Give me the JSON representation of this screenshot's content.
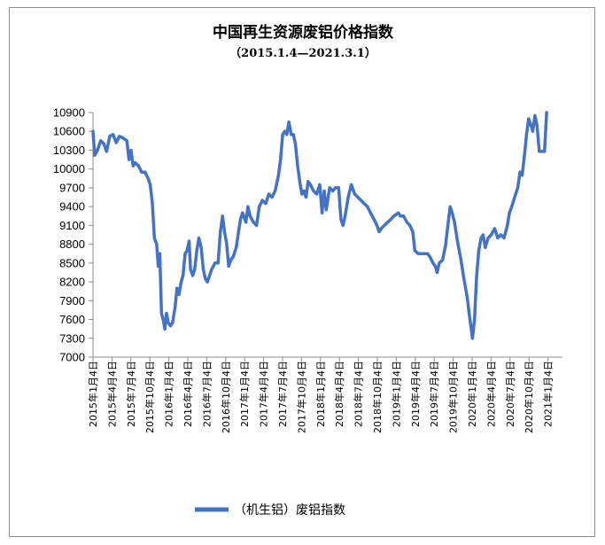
{
  "chart_data": {
    "type": "line",
    "title": "中国再生资源废铝价格指数",
    "subtitle": "（2015.1.4—2021.3.1）",
    "ylim": [
      7000,
      10900
    ],
    "yticks": [
      7000,
      7300,
      7600,
      7900,
      8200,
      8500,
      8800,
      9100,
      9400,
      9700,
      10000,
      10300,
      10600,
      10900
    ],
    "xticks": [
      "2015年1月4日",
      "2015年4月4日",
      "2015年7月4日",
      "2015年10月4日",
      "2016年1月4日",
      "2016年4月4日",
      "2016年7月4日",
      "2016年10月4日",
      "2017年1月4日",
      "2017年4月4日",
      "2017年7月4日",
      "2017年10月4日",
      "2018年1月4日",
      "2018年4月4日",
      "2018年7月4日",
      "2018年10月4日",
      "2019年1月4日",
      "2019年4月4日",
      "2019年7月4日",
      "2019年10月4日",
      "2020年1月4日",
      "2020年4月4日",
      "2020年7月4日",
      "2020年10月4日",
      "2021年1月4日"
    ],
    "grid": false,
    "legend_position": "bottom",
    "series": [
      {
        "name": "（机生铝）废铝指数",
        "color": "#4472c4",
        "x_start": "2015-01-04",
        "x_end": "2021-03-01",
        "values": [
          [
            "2015-01-04",
            10600
          ],
          [
            "2015-01-12",
            10220
          ],
          [
            "2015-01-25",
            10300
          ],
          [
            "2015-02-10",
            10450
          ],
          [
            "2015-02-25",
            10400
          ],
          [
            "2015-03-10",
            10280
          ],
          [
            "2015-03-25",
            10520
          ],
          [
            "2015-04-10",
            10550
          ],
          [
            "2015-04-25",
            10420
          ],
          [
            "2015-05-10",
            10520
          ],
          [
            "2015-05-25",
            10500
          ],
          [
            "2015-06-15",
            10450
          ],
          [
            "2015-06-25",
            10150
          ],
          [
            "2015-07-05",
            10300
          ],
          [
            "2015-07-15",
            10050
          ],
          [
            "2015-07-25",
            10100
          ],
          [
            "2015-08-10",
            10050
          ],
          [
            "2015-08-25",
            9950
          ],
          [
            "2015-09-10",
            9950
          ],
          [
            "2015-09-25",
            9850
          ],
          [
            "2015-10-05",
            9750
          ],
          [
            "2015-10-15",
            9450
          ],
          [
            "2015-10-25",
            8900
          ],
          [
            "2015-11-05",
            8800
          ],
          [
            "2015-11-12",
            8450
          ],
          [
            "2015-11-20",
            8650
          ],
          [
            "2015-11-28",
            7700
          ],
          [
            "2015-12-06",
            7600
          ],
          [
            "2015-12-14",
            7450
          ],
          [
            "2015-12-22",
            7700
          ],
          [
            "2015-12-30",
            7550
          ],
          [
            "2016-01-10",
            7500
          ],
          [
            "2016-01-20",
            7550
          ],
          [
            "2016-02-01",
            7800
          ],
          [
            "2016-02-10",
            8100
          ],
          [
            "2016-02-20",
            8000
          ],
          [
            "2016-03-01",
            8200
          ],
          [
            "2016-03-10",
            8300
          ],
          [
            "2016-03-20",
            8650
          ],
          [
            "2016-03-30",
            8700
          ],
          [
            "2016-04-08",
            8850
          ],
          [
            "2016-04-15",
            8400
          ],
          [
            "2016-04-25",
            8300
          ],
          [
            "2016-05-05",
            8400
          ],
          [
            "2016-05-15",
            8700
          ],
          [
            "2016-05-25",
            8900
          ],
          [
            "2016-06-05",
            8750
          ],
          [
            "2016-06-15",
            8400
          ],
          [
            "2016-06-25",
            8250
          ],
          [
            "2016-07-05",
            8200
          ],
          [
            "2016-07-15",
            8300
          ],
          [
            "2016-07-25",
            8400
          ],
          [
            "2016-08-10",
            8500
          ],
          [
            "2016-08-25",
            8500
          ],
          [
            "2016-09-05",
            9000
          ],
          [
            "2016-09-15",
            9250
          ],
          [
            "2016-09-25",
            9000
          ],
          [
            "2016-10-05",
            8800
          ],
          [
            "2016-10-15",
            8450
          ],
          [
            "2016-10-25",
            8550
          ],
          [
            "2016-11-05",
            8600
          ],
          [
            "2016-11-20",
            8750
          ],
          [
            "2016-12-01",
            9000
          ],
          [
            "2016-12-10",
            9200
          ],
          [
            "2016-12-20",
            9300
          ],
          [
            "2017-01-05",
            9150
          ],
          [
            "2017-01-15",
            9400
          ],
          [
            "2017-01-25",
            9250
          ],
          [
            "2017-02-10",
            9150
          ],
          [
            "2017-02-25",
            9100
          ],
          [
            "2017-03-10",
            9400
          ],
          [
            "2017-03-25",
            9500
          ],
          [
            "2017-04-10",
            9450
          ],
          [
            "2017-04-25",
            9600
          ],
          [
            "2017-05-10",
            9550
          ],
          [
            "2017-05-25",
            9650
          ],
          [
            "2017-06-10",
            9900
          ],
          [
            "2017-06-20",
            10150
          ],
          [
            "2017-06-30",
            10550
          ],
          [
            "2017-07-10",
            10600
          ],
          [
            "2017-07-20",
            10550
          ],
          [
            "2017-07-30",
            10750
          ],
          [
            "2017-08-10",
            10550
          ],
          [
            "2017-08-20",
            10550
          ],
          [
            "2017-08-30",
            10400
          ],
          [
            "2017-09-10",
            10050
          ],
          [
            "2017-09-20",
            9800
          ],
          [
            "2017-09-30",
            9600
          ],
          [
            "2017-10-10",
            9650
          ],
          [
            "2017-10-20",
            9550
          ],
          [
            "2017-10-30",
            9800
          ],
          [
            "2017-11-10",
            9750
          ],
          [
            "2017-11-25",
            9650
          ],
          [
            "2017-12-10",
            9600
          ],
          [
            "2017-12-25",
            9750
          ],
          [
            "2018-01-05",
            9300
          ],
          [
            "2018-01-15",
            9650
          ],
          [
            "2018-01-25",
            9350
          ],
          [
            "2018-02-10",
            9700
          ],
          [
            "2018-02-25",
            9650
          ],
          [
            "2018-03-10",
            9700
          ],
          [
            "2018-03-25",
            9700
          ],
          [
            "2018-04-05",
            9200
          ],
          [
            "2018-04-15",
            9100
          ],
          [
            "2018-04-25",
            9250
          ],
          [
            "2018-05-10",
            9550
          ],
          [
            "2018-05-25",
            9750
          ],
          [
            "2018-06-10",
            9600
          ],
          [
            "2018-06-25",
            9550
          ],
          [
            "2018-07-10",
            9500
          ],
          [
            "2018-07-25",
            9450
          ],
          [
            "2018-08-10",
            9400
          ],
          [
            "2018-08-25",
            9300
          ],
          [
            "2018-09-10",
            9200
          ],
          [
            "2018-09-25",
            9100
          ],
          [
            "2018-10-05",
            9000
          ],
          [
            "2018-10-15",
            9050
          ],
          [
            "2018-10-30",
            9100
          ],
          [
            "2018-11-15",
            9150
          ],
          [
            "2018-12-01",
            9200
          ],
          [
            "2018-12-15",
            9250
          ],
          [
            "2019-01-05",
            9300
          ],
          [
            "2019-01-15",
            9250
          ],
          [
            "2019-01-30",
            9250
          ],
          [
            "2019-02-15",
            9150
          ],
          [
            "2019-03-01",
            9100
          ],
          [
            "2019-03-15",
            9000
          ],
          [
            "2019-03-25",
            8700
          ],
          [
            "2019-04-10",
            8650
          ],
          [
            "2019-04-25",
            8650
          ],
          [
            "2019-05-10",
            8650
          ],
          [
            "2019-05-25",
            8650
          ],
          [
            "2019-06-05",
            8600
          ],
          [
            "2019-06-20",
            8500
          ],
          [
            "2019-07-01",
            8450
          ],
          [
            "2019-07-10",
            8350
          ],
          [
            "2019-07-20",
            8500
          ],
          [
            "2019-08-05",
            8550
          ],
          [
            "2019-08-20",
            8800
          ],
          [
            "2019-08-30",
            9100
          ],
          [
            "2019-09-10",
            9400
          ],
          [
            "2019-09-20",
            9300
          ],
          [
            "2019-10-01",
            9150
          ],
          [
            "2019-10-15",
            8850
          ],
          [
            "2019-11-01",
            8550
          ],
          [
            "2019-11-15",
            8250
          ],
          [
            "2019-12-01",
            7950
          ],
          [
            "2019-12-10",
            7700
          ],
          [
            "2019-12-18",
            7500
          ],
          [
            "2019-12-26",
            7300
          ],
          [
            "2020-01-05",
            7600
          ],
          [
            "2020-01-15",
            8300
          ],
          [
            "2020-01-25",
            8700
          ],
          [
            "2020-02-05",
            8900
          ],
          [
            "2020-02-15",
            8950
          ],
          [
            "2020-02-25",
            8750
          ],
          [
            "2020-03-10",
            8900
          ],
          [
            "2020-03-25",
            8950
          ],
          [
            "2020-04-10",
            9050
          ],
          [
            "2020-04-25",
            8900
          ],
          [
            "2020-05-10",
            8950
          ],
          [
            "2020-05-25",
            8900
          ],
          [
            "2020-06-10",
            9100
          ],
          [
            "2020-06-20",
            9300
          ],
          [
            "2020-07-01",
            9400
          ],
          [
            "2020-07-15",
            9550
          ],
          [
            "2020-07-30",
            9700
          ],
          [
            "2020-08-10",
            9950
          ],
          [
            "2020-08-20",
            9900
          ],
          [
            "2020-09-01",
            10250
          ],
          [
            "2020-09-10",
            10550
          ],
          [
            "2020-09-20",
            10800
          ],
          [
            "2020-10-01",
            10700
          ],
          [
            "2020-10-10",
            10600
          ],
          [
            "2020-10-20",
            10850
          ],
          [
            "2020-10-30",
            10700
          ],
          [
            "2020-11-10",
            10280
          ],
          [
            "2020-11-25",
            10280
          ],
          [
            "2020-12-05",
            10280
          ],
          [
            "2020-12-15",
            10900
          ]
        ]
      }
    ]
  }
}
